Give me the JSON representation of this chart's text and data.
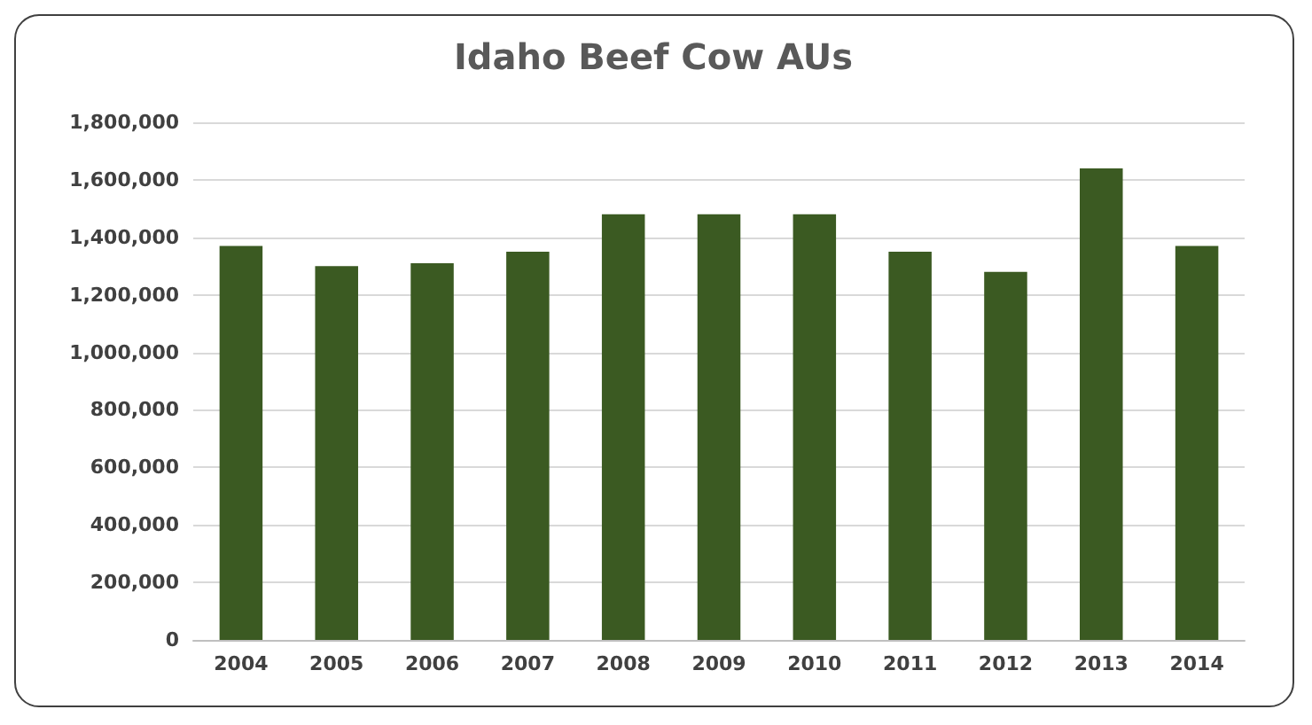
{
  "chart_data": {
    "type": "bar",
    "title": "Idaho Beef Cow AUs",
    "categories": [
      "2004",
      "2005",
      "2006",
      "2007",
      "2008",
      "2009",
      "2010",
      "2011",
      "2012",
      "2013",
      "2014"
    ],
    "values": [
      1370000,
      1300000,
      1310000,
      1350000,
      1480000,
      1480000,
      1480000,
      1350000,
      1280000,
      1640000,
      1370000
    ],
    "color": "#3b5a22",
    "ylim": [
      0,
      1800000
    ],
    "yticks": [
      0,
      {
        "value": 200000,
        "label": "200,000"
      },
      {
        "value": 400000,
        "label": "400,000"
      },
      {
        "value": 600000,
        "label": "600,000"
      },
      {
        "value": 800000,
        "label": "800,000"
      },
      {
        "value": 1000000,
        "label": "1,000,000"
      },
      {
        "value": 1200000,
        "label": "1,200,000"
      },
      {
        "value": 1400000,
        "label": "1,400,000"
      },
      {
        "value": 1600000,
        "label": "1,600,000"
      },
      {
        "value": 1800000,
        "label": "1,800,000"
      }
    ],
    "grid": "y"
  }
}
